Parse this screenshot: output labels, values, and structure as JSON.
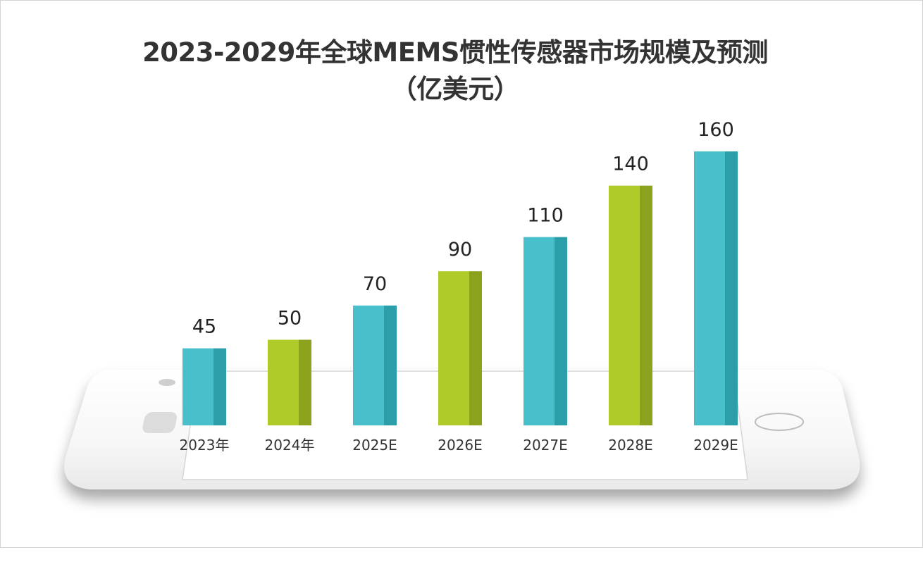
{
  "chart_data": {
    "type": "bar",
    "title_line1": "2023-2029年全球MEMS惯性传感器市场规模及预测",
    "title_line2": "（亿美元）",
    "categories": [
      "2023年",
      "2024年",
      "2025E",
      "2026E",
      "2027E",
      "2028E",
      "2029E"
    ],
    "values": [
      45,
      50,
      70,
      90,
      110,
      140,
      160
    ],
    "ylim": [
      0,
      160
    ],
    "grid": false,
    "legend": "none",
    "bar_colors": [
      "#49bfcc",
      "#aecb2a",
      "#49bfcc",
      "#aecb2a",
      "#49bfcc",
      "#aecb2a",
      "#49bfcc"
    ],
    "bar_side_colors": [
      "#2b9ea9",
      "#8ba31c",
      "#2b9ea9",
      "#8ba31c",
      "#2b9ea9",
      "#8ba31c",
      "#2b9ea9"
    ]
  }
}
